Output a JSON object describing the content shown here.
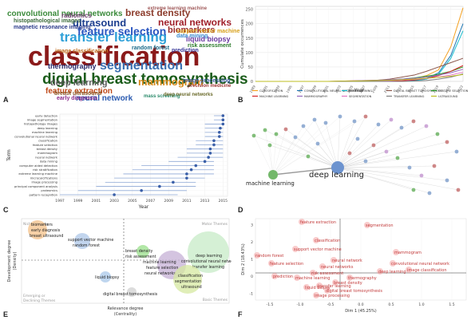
{
  "panels": {
    "a": "A",
    "b": "B",
    "c": "C",
    "d": "D",
    "e": "E",
    "f": "F"
  },
  "wordcloud": [
    {
      "text": "classification",
      "color": "#8b1a1a"
    },
    {
      "text": "digital breast tomosynthesis",
      "color": "#1a5c1a"
    },
    {
      "text": "transfer learning",
      "color": "#2ea0d8"
    },
    {
      "text": "ultrasound",
      "color": "#1d3f8f"
    },
    {
      "text": "feature selection",
      "color": "#2a55c0"
    },
    {
      "text": "mammogram",
      "color": "#d68a1a"
    },
    {
      "text": "segmentation",
      "color": "#3a6fb0"
    },
    {
      "text": "breast density",
      "color": "#8c3c2c"
    },
    {
      "text": "neural networks",
      "color": "#a0202a"
    },
    {
      "text": "convolutional neural networks",
      "color": "#3a8a3a"
    },
    {
      "text": "deep learning",
      "color": "#5a5a5a"
    },
    {
      "text": "neural network",
      "color": "#2a5ab0"
    },
    {
      "text": "biomarkers",
      "color": "#9a2a2a"
    },
    {
      "text": "thermography",
      "color": "#2a2a6a"
    },
    {
      "text": "feature extraction",
      "color": "#c04a1a"
    },
    {
      "text": "support vector machine",
      "color": "#d8a01a"
    },
    {
      "text": "liquid biopsy",
      "color": "#6a3aa0"
    },
    {
      "text": "radiomics",
      "color": "#6a3a6a"
    },
    {
      "text": "histopathological images",
      "color": "#3a6a3a"
    },
    {
      "text": "magnetic resonance imaging",
      "color": "#2a3a8a"
    },
    {
      "text": "data mining",
      "color": "#3a8ad0"
    },
    {
      "text": "random forest",
      "color": "#1a6a8a"
    },
    {
      "text": "image classification",
      "color": "#c06a1a"
    },
    {
      "text": "risk assessment",
      "color": "#2a7a2a"
    },
    {
      "text": "early diagnosis",
      "color": "#8a2a8a"
    },
    {
      "text": "breast ultrasound",
      "color": "#8a5a2a"
    },
    {
      "text": "image processing",
      "color": "#3a5aa0"
    },
    {
      "text": "precision medicine",
      "color": "#a03a3a"
    },
    {
      "text": "mass screening",
      "color": "#2a8a6a"
    },
    {
      "text": "deep neural networks",
      "color": "#6a6a2a"
    },
    {
      "text": "extreme learning machine",
      "color": "#a05a5a"
    },
    {
      "text": "prediction",
      "color": "#3a3a9a"
    }
  ],
  "chart_data": [
    {
      "type": "line",
      "panel": "B",
      "xlabel": "Year",
      "ylabel": "Cumulate occurrences",
      "yticks": [
        0,
        50,
        100,
        150,
        200,
        250
      ],
      "ylim": [
        0,
        260
      ],
      "x": [
        1989,
        1991,
        1993,
        1995,
        1997,
        1999,
        2001,
        2003,
        2005,
        2007,
        2009,
        2011,
        2013,
        2015,
        2017,
        2019,
        2021,
        2023
      ],
      "series": [
        {
          "name": "CLASSIFICATION",
          "color": "#f4a020",
          "values": [
            0,
            0,
            0,
            0,
            0,
            0,
            0,
            1,
            2,
            3,
            4,
            5,
            7,
            10,
            20,
            40,
            120,
            255
          ]
        },
        {
          "name": "CONVOLUTIONAL NEURAL NETWORK",
          "color": "#1f77b4",
          "values": [
            0,
            0,
            0,
            0,
            0,
            0,
            0,
            0,
            0,
            0,
            0,
            0,
            1,
            3,
            10,
            30,
            90,
            200
          ]
        },
        {
          "name": "DEEP LEARNING",
          "color": "#17becf",
          "values": [
            0,
            0,
            0,
            0,
            0,
            0,
            0,
            0,
            0,
            0,
            0,
            0,
            1,
            2,
            8,
            25,
            80,
            175
          ]
        },
        {
          "name": "DIGITAL BREAST TOMOSYNTHESIS",
          "color": "#8c564b",
          "values": [
            0,
            0,
            0,
            0,
            0,
            0,
            0,
            0,
            1,
            2,
            4,
            8,
            15,
            22,
            35,
            50,
            65,
            80
          ]
        },
        {
          "name": "FEATURE SELECTION",
          "color": "#2ca02c",
          "values": [
            0,
            0,
            0,
            0,
            0,
            0,
            0,
            0,
            1,
            2,
            3,
            5,
            8,
            12,
            18,
            25,
            35,
            50
          ]
        },
        {
          "name": "MACHINE LEARNING",
          "color": "#d62728",
          "values": [
            0,
            0,
            0,
            0,
            0,
            0,
            0,
            0,
            0,
            0,
            0,
            1,
            2,
            5,
            10,
            20,
            35,
            55
          ]
        },
        {
          "name": "MAMMOGRAPHY",
          "color": "#9467bd",
          "values": [
            0,
            0,
            0,
            0,
            0,
            0,
            0,
            1,
            2,
            3,
            4,
            6,
            8,
            11,
            15,
            22,
            30,
            42
          ]
        },
        {
          "name": "SEGMENTATION",
          "color": "#e377c2",
          "values": [
            0,
            0,
            0,
            0,
            0,
            0,
            0,
            0,
            1,
            1,
            2,
            3,
            5,
            7,
            10,
            15,
            22,
            32
          ]
        },
        {
          "name": "TRANSFER LEARNING",
          "color": "#7f7f7f",
          "values": [
            0,
            0,
            0,
            0,
            0,
            0,
            0,
            0,
            0,
            0,
            0,
            0,
            0,
            1,
            3,
            8,
            15,
            26
          ]
        },
        {
          "name": "ULTRASOUND",
          "color": "#bcbd22",
          "values": [
            0,
            0,
            0,
            0,
            0,
            0,
            0,
            1,
            1,
            2,
            3,
            4,
            6,
            8,
            11,
            14,
            18,
            24
          ]
        }
      ]
    },
    {
      "type": "scatter",
      "panel": "C",
      "xlabel": "Year",
      "ylabel": "Term",
      "xticks": [
        "1997",
        "1999",
        "2001",
        "2003",
        "2005",
        "2007",
        "2009",
        "2011",
        "2013",
        "2015"
      ],
      "terms": [
        {
          "term": "early detection",
          "start": 2014,
          "end": 2015,
          "median": 2015
        },
        {
          "term": "image segmentation",
          "start": 2014,
          "end": 2015,
          "median": 2015
        },
        {
          "term": "histopathology images",
          "start": 2013,
          "end": 2015,
          "median": 2015
        },
        {
          "term": "deep learning",
          "start": 2013,
          "end": 2015,
          "median": 2014.7
        },
        {
          "term": "machine learning",
          "start": 2013,
          "end": 2015,
          "median": 2014.6
        },
        {
          "term": "convolutional neural network",
          "start": 2013,
          "end": 2015,
          "median": 2014.6
        },
        {
          "term": "classification",
          "start": 2012,
          "end": 2015,
          "median": 2014
        },
        {
          "term": "feature selection",
          "start": 2012,
          "end": 2015,
          "median": 2014
        },
        {
          "term": "breast density",
          "start": 2011,
          "end": 2015,
          "median": 2013.6
        },
        {
          "term": "mammogram",
          "start": 2011,
          "end": 2015,
          "median": 2013.6
        },
        {
          "term": "neural network",
          "start": 2010,
          "end": 2015,
          "median": 2013.4
        },
        {
          "term": "data mining",
          "start": 2009,
          "end": 2014,
          "median": 2013
        },
        {
          "term": "computer aided detection",
          "start": 2006,
          "end": 2014,
          "median": 2012
        },
        {
          "term": "risk stratification",
          "start": 2005,
          "end": 2014,
          "median": 2011.5
        },
        {
          "term": "extreme learning machine",
          "start": 2004,
          "end": 2014,
          "median": 2011
        },
        {
          "term": "microcalcifications",
          "start": 2003,
          "end": 2013,
          "median": 2011
        },
        {
          "term": "image processing",
          "start": 2002,
          "end": 2012,
          "median": 2009.5
        },
        {
          "term": "principal component analysis",
          "start": 2001,
          "end": 2012,
          "median": 2008
        },
        {
          "term": "proteomics",
          "start": 1999,
          "end": 2011,
          "median": 2006
        },
        {
          "term": "pattern recognition",
          "start": 1997,
          "end": 2010,
          "median": 2003
        }
      ]
    }
  ],
  "network": {
    "labels": [
      {
        "text": "deep learning",
        "color": "#222222"
      },
      {
        "text": "machine learning",
        "color": "#222222"
      }
    ]
  },
  "thematic_map": {
    "xlabel": "Relevance degree",
    "xlabel2": "(Centrality)",
    "ylabel": "Development degree",
    "ylabel2": "(Density)",
    "quadrants": [
      "Niche Themes",
      "Motor Themes",
      "Emerging or Declining Themes",
      "Basic Themes"
    ],
    "clusters": [
      {
        "labels": [
          "biomarkers",
          "early diagnosis",
          "breast ultrasound"
        ],
        "color": "#f4c28a"
      },
      {
        "labels": [
          "support vector machine",
          "random forest"
        ],
        "color": "#aec7e8"
      },
      {
        "labels": [
          "breast density",
          "risk assessment"
        ],
        "color": "#98df8a"
      },
      {
        "labels": [
          "machine learning",
          "feature selection",
          "neural networks"
        ],
        "color": "#c5b0d5"
      },
      {
        "labels": [
          "deep learning",
          "convolutional neural network",
          "transfer learning"
        ],
        "color": "#c7ebc7"
      },
      {
        "labels": [
          "classification",
          "segmentation",
          "ultrasound"
        ],
        "color": "#d6e8a0"
      },
      {
        "labels": [
          "liquid biopsy"
        ],
        "color": "#a9c8ea"
      },
      {
        "labels": [
          "digital breast tomosynthesis"
        ],
        "color": "#d0d0d0"
      }
    ]
  },
  "factorial_map": {
    "xlabel": "Dim 1 (45.25%)",
    "ylabel": "Dim 2 (18.43%)",
    "xticks": [
      "-1.5",
      "-1.0",
      "-0.5",
      "0.0",
      "0.5",
      "1.0",
      "1.5"
    ],
    "yticks": [
      "3",
      "2",
      "1",
      "0",
      "-1"
    ],
    "labels": [
      "feature extraction",
      "segmentation",
      "classification",
      "support vector machine",
      "random forest",
      "feature selection",
      "mammogram",
      "neural network",
      "convolutional neural network",
      "image classification",
      "neural networks",
      "deep learning",
      "thermography",
      "prediction",
      "machine learning",
      "transfer learning",
      "digital breast tomosynthesis",
      "liquid biopsy",
      "breast density",
      "image processing",
      "risk assessment"
    ]
  }
}
